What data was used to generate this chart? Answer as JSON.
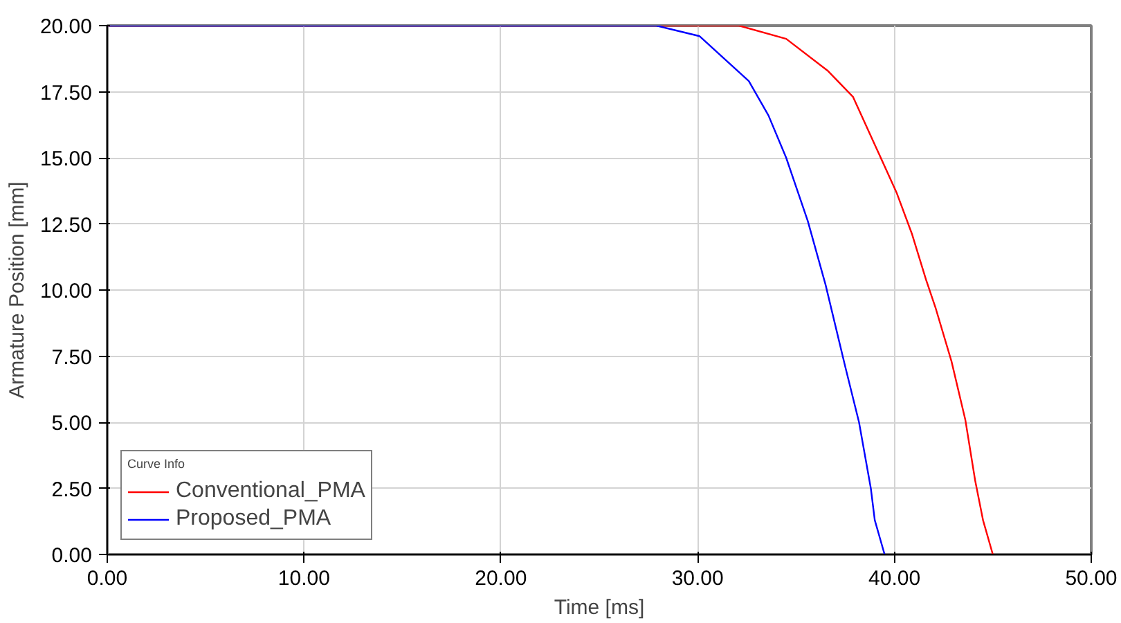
{
  "chart_data": {
    "type": "line",
    "xlabel": "Time [ms]",
    "ylabel": "Armature Position [mm]",
    "legend_title": "Curve Info",
    "legend": "bottom left",
    "grid": true,
    "line_style": "solid",
    "xlim": [
      0,
      50
    ],
    "ylim": [
      0,
      20
    ],
    "xticks": [
      {
        "value": 0,
        "label": "0.00"
      },
      {
        "value": 10,
        "label": "10.00"
      },
      {
        "value": 20,
        "label": "20.00"
      },
      {
        "value": 30,
        "label": "30.00"
      },
      {
        "value": 40,
        "label": "40.00"
      },
      {
        "value": 50,
        "label": "50.00"
      }
    ],
    "yticks": [
      {
        "value": 0,
        "label": "0.00"
      },
      {
        "value": 2.5,
        "label": "2.50"
      },
      {
        "value": 5,
        "label": "5.00"
      },
      {
        "value": 7.5,
        "label": "7.50"
      },
      {
        "value": 10,
        "label": "10.00"
      },
      {
        "value": 12.5,
        "label": "12.50"
      },
      {
        "value": 15,
        "label": "15.00"
      },
      {
        "value": 17.5,
        "label": "17.50"
      },
      {
        "value": 20,
        "label": "20.00"
      }
    ],
    "series": [
      {
        "name": "Conventional_PMA",
        "color": "#ff0000",
        "x": [
          0,
          32.1,
          34.5,
          36.6,
          37.9,
          39.0,
          40.1,
          40.9,
          41.6,
          42.1,
          42.9,
          43.6,
          44.1,
          44.5,
          45.0
        ],
        "values": [
          20,
          20,
          19.5,
          18.3,
          17.3,
          15.5,
          13.7,
          12.1,
          10.4,
          9.3,
          7.3,
          5.1,
          2.8,
          1.3,
          0
        ]
      },
      {
        "name": "Proposed_PMA",
        "color": "#0000ff",
        "x": [
          0,
          27.9,
          30.1,
          32.6,
          33.6,
          34.5,
          35.6,
          36.5,
          37.5,
          38.2,
          38.8,
          39.0,
          39.5
        ],
        "values": [
          20,
          20,
          19.6,
          17.9,
          16.6,
          15.0,
          12.6,
          10.2,
          7.1,
          5.0,
          2.5,
          1.3,
          0
        ]
      }
    ]
  }
}
